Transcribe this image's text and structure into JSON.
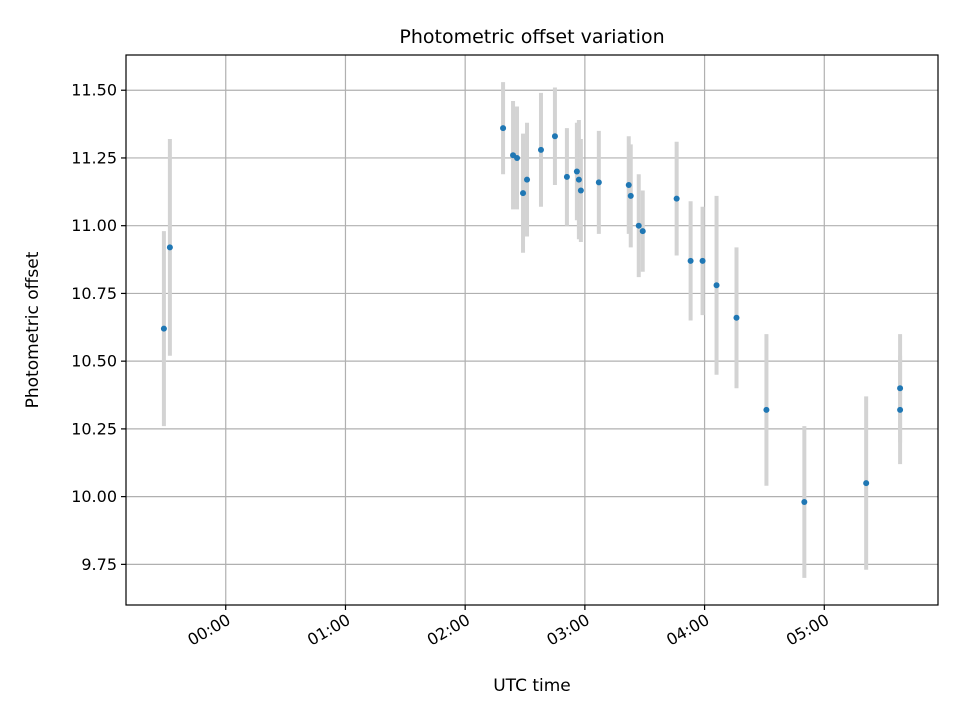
{
  "chart_data": {
    "type": "scatter",
    "title": "Photometric offset variation",
    "xlabel": "UTC time",
    "ylabel": "Photometric offset",
    "x_unit": "UTC time of day",
    "xlim": [
      "-00:50",
      "05:57"
    ],
    "ylim": [
      9.6,
      11.63
    ],
    "grid": true,
    "x_ticks": [
      "00:00",
      "01:00",
      "02:00",
      "03:00",
      "04:00",
      "05:00"
    ],
    "y_ticks": [
      "9.75",
      "10.00",
      "10.25",
      "10.50",
      "10.75",
      "11.00",
      "11.25",
      "11.50"
    ],
    "x_tick_label_rotation": "30 degrees",
    "colors": {
      "marker": "#1f77b4",
      "errorbar": "#d3d3d3",
      "grid": "#b0b0b0"
    },
    "points": [
      {
        "time": "-00:31",
        "y": 10.62,
        "err": 0.36
      },
      {
        "time": "-00:28",
        "y": 10.92,
        "err": 0.4
      },
      {
        "time": "02:19",
        "y": 11.36,
        "err": 0.17
      },
      {
        "time": "02:24",
        "y": 11.26,
        "err": 0.2
      },
      {
        "time": "02:26",
        "y": 11.25,
        "err": 0.19
      },
      {
        "time": "02:29",
        "y": 11.12,
        "err": 0.22
      },
      {
        "time": "02:31",
        "y": 11.17,
        "err": 0.21
      },
      {
        "time": "02:38",
        "y": 11.28,
        "err": 0.21
      },
      {
        "time": "02:45",
        "y": 11.33,
        "err": 0.18
      },
      {
        "time": "02:51",
        "y": 11.18,
        "err": 0.18
      },
      {
        "time": "02:56",
        "y": 11.2,
        "err": 0.18
      },
      {
        "time": "02:57",
        "y": 11.17,
        "err": 0.22
      },
      {
        "time": "02:58",
        "y": 11.13,
        "err": 0.19
      },
      {
        "time": "03:07",
        "y": 11.16,
        "err": 0.19
      },
      {
        "time": "03:22",
        "y": 11.15,
        "err": 0.18
      },
      {
        "time": "03:23",
        "y": 11.11,
        "err": 0.19
      },
      {
        "time": "03:27",
        "y": 11.0,
        "err": 0.19
      },
      {
        "time": "03:29",
        "y": 10.98,
        "err": 0.15
      },
      {
        "time": "03:46",
        "y": 11.1,
        "err": 0.21
      },
      {
        "time": "03:53",
        "y": 10.87,
        "err": 0.22
      },
      {
        "time": "03:59",
        "y": 10.87,
        "err": 0.2
      },
      {
        "time": "04:06",
        "y": 10.78,
        "err": 0.33
      },
      {
        "time": "04:16",
        "y": 10.66,
        "err": 0.26
      },
      {
        "time": "04:31",
        "y": 10.32,
        "err": 0.28
      },
      {
        "time": "04:50",
        "y": 9.98,
        "err": 0.28
      },
      {
        "time": "05:21",
        "y": 10.05,
        "err": 0.32
      },
      {
        "time": "05:38",
        "y": 10.32,
        "err": 0.2
      },
      {
        "time": "05:38",
        "y": 10.4,
        "err": 0.2
      }
    ]
  }
}
